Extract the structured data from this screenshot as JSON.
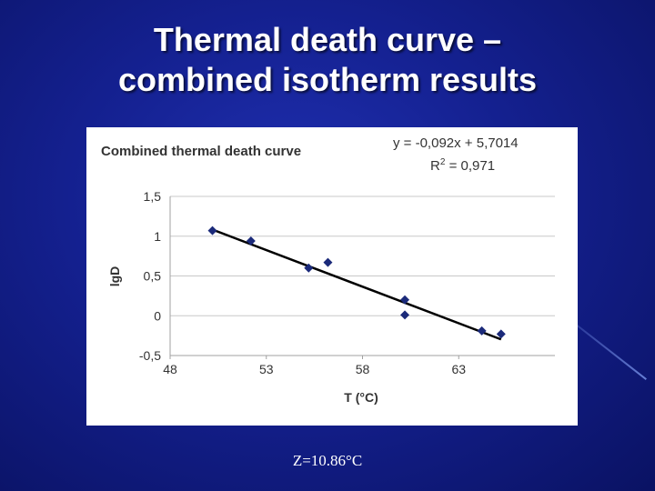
{
  "slide": {
    "title_line1": "Thermal death curve –",
    "title_line2": "combined isotherm results",
    "footer": "Z=10.86°C"
  },
  "chart_data": {
    "type": "scatter",
    "title": "Combined thermal death curve",
    "xlabel": "T (°C)",
    "ylabel": "lgD",
    "xlim": [
      48,
      68
    ],
    "ylim": [
      -0.5,
      1.5
    ],
    "xticks": [
      48,
      53,
      58,
      63
    ],
    "xtick_labels": [
      "48",
      "53",
      "58",
      "63"
    ],
    "yticks": [
      1.5,
      1,
      0.5,
      0,
      -0.5
    ],
    "ytick_labels": [
      "1,5",
      "1",
      "0,5",
      "0",
      "-0,5"
    ],
    "grid": "horizontal",
    "legend": "none",
    "series": [
      {
        "x": [
          50.2,
          52.2,
          55.2,
          56.2,
          60.2,
          60.2,
          64.2,
          65.2
        ],
        "y": [
          1.07,
          0.94,
          0.6,
          0.67,
          0.2,
          0.01,
          -0.19,
          -0.23
        ],
        "marker": "diamond",
        "color": "#1b2a7a"
      }
    ],
    "trendline": {
      "slope": -0.092,
      "intercept": 5.7014,
      "x_range": [
        50.2,
        65.2
      ],
      "color": "#000000",
      "equation": "y = -0,092x + 5,7014",
      "r2_prefix": "R",
      "r2_sup": "2",
      "r2_suffix": " = 0,971"
    }
  }
}
